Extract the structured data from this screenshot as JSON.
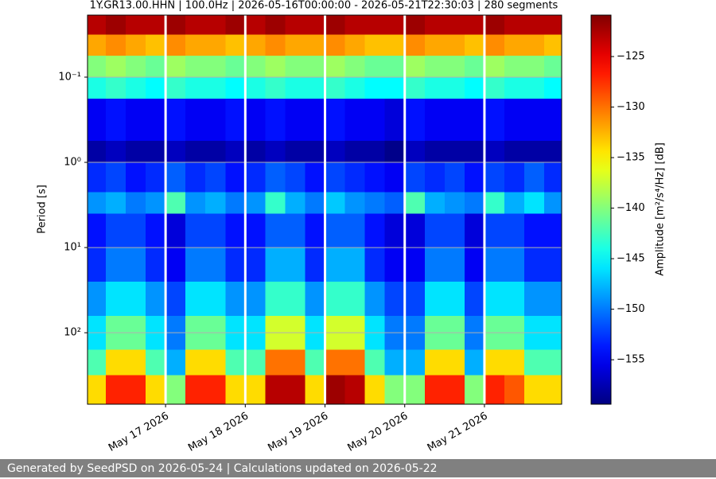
{
  "chart_data": {
    "type": "heatmap",
    "title": "1Y.GR13.00.HHN | 100.0Hz | 2026-05-16T00:00:00 - 2026-05-21T22:30:03 | 280 segments",
    "y_label": "Period [s]",
    "colorbar_label": "Amplitude [m²/s⁴/Hz] [dB]",
    "colormap": "jet",
    "x_bins": [
      "2026-05-16T00:00",
      "2026-05-16T06:00",
      "2026-05-16T12:00",
      "2026-05-16T18:00",
      "2026-05-17T00:00",
      "2026-05-17T06:00",
      "2026-05-17T12:00",
      "2026-05-17T18:00",
      "2026-05-18T00:00",
      "2026-05-18T06:00",
      "2026-05-18T12:00",
      "2026-05-18T18:00",
      "2026-05-19T00:00",
      "2026-05-19T06:00",
      "2026-05-19T12:00",
      "2026-05-19T18:00",
      "2026-05-20T00:00",
      "2026-05-20T06:00",
      "2026-05-20T12:00",
      "2026-05-20T18:00",
      "2026-05-21T00:00",
      "2026-05-21T06:00",
      "2026-05-21T12:00",
      "2026-05-21T18:00",
      "2026-05-22T00:00"
    ],
    "y_bins": [
      0.0187,
      0.0316,
      0.0562,
      0.1,
      0.178,
      0.562,
      1,
      2.24,
      3.98,
      10,
      25.1,
      63.1,
      158,
      316,
      690
    ],
    "values": [
      [
        -123,
        -122,
        -123,
        -123,
        -122,
        -123,
        -123,
        -122,
        -123,
        -122,
        -123,
        -123,
        -122,
        -123,
        -123,
        -123,
        -122,
        -123,
        -123,
        -123,
        -122,
        -123,
        -123,
        -123
      ],
      [
        -132,
        -131,
        -132,
        -133,
        -131,
        -132,
        -132,
        -133,
        -132,
        -131,
        -132,
        -132,
        -131,
        -132,
        -133,
        -133,
        -131,
        -132,
        -132,
        -133,
        -131,
        -132,
        -132,
        -133
      ],
      [
        -140,
        -139,
        -140,
        -141,
        -139,
        -140,
        -140,
        -141,
        -140,
        -139,
        -140,
        -140,
        -139,
        -140,
        -141,
        -141,
        -139,
        -140,
        -140,
        -141,
        -139,
        -140,
        -140,
        -141
      ],
      [
        -144,
        -143,
        -144,
        -145,
        -143,
        -144,
        -144,
        -145,
        -144,
        -143,
        -144,
        -144,
        -143,
        -144,
        -145,
        -145,
        -143,
        -144,
        -144,
        -145,
        -143,
        -144,
        -144,
        -145
      ],
      [
        -155,
        -154,
        -155,
        -155,
        -154,
        -155,
        -155,
        -154,
        -155,
        -154,
        -155,
        -155,
        -154,
        -155,
        -155,
        -156,
        -154,
        -155,
        -155,
        -155,
        -154,
        -155,
        -155,
        -155
      ],
      [
        -158,
        -157,
        -158,
        -158,
        -157,
        -158,
        -158,
        -157,
        -158,
        -157,
        -158,
        -158,
        -157,
        -158,
        -158,
        -159,
        -157,
        -158,
        -158,
        -158,
        -157,
        -158,
        -158,
        -158
      ],
      [
        -153,
        -152,
        -154,
        -153,
        -151,
        -153,
        -152,
        -154,
        -153,
        -151,
        -152,
        -154,
        -152,
        -153,
        -154,
        -155,
        -152,
        -153,
        -152,
        -154,
        -152,
        -153,
        -151,
        -153
      ],
      [
        -149,
        -148,
        -150,
        -149,
        -142,
        -149,
        -148,
        -150,
        -149,
        -143,
        -148,
        -150,
        -147,
        -149,
        -150,
        -151,
        -142,
        -148,
        -149,
        -150,
        -143,
        -148,
        -146,
        -149
      ],
      [
        -154,
        -152,
        -152,
        -154,
        -156,
        -152,
        -152,
        -154,
        -154,
        -151,
        -151,
        -154,
        -151,
        -151,
        -154,
        -156,
        -156,
        -152,
        -152,
        -156,
        -152,
        -152,
        -154,
        -154
      ],
      [
        -153,
        -150,
        -150,
        -153,
        -155,
        -150,
        -150,
        -153,
        -153,
        -148,
        -148,
        -153,
        -148,
        -148,
        -153,
        -155,
        -155,
        -150,
        -150,
        -155,
        -150,
        -150,
        -153,
        -153
      ],
      [
        -149,
        -146,
        -146,
        -149,
        -152,
        -146,
        -146,
        -149,
        -149,
        -143,
        -143,
        -149,
        -143,
        -143,
        -149,
        -152,
        -152,
        -146,
        -146,
        -152,
        -146,
        -146,
        -149,
        -149
      ],
      [
        -146,
        -141,
        -141,
        -146,
        -150,
        -141,
        -141,
        -146,
        -146,
        -137,
        -137,
        -146,
        -137,
        -137,
        -146,
        -150,
        -150,
        -141,
        -141,
        -150,
        -141,
        -141,
        -146,
        -146
      ],
      [
        -142,
        -134,
        -134,
        -142,
        -148,
        -134,
        -134,
        -142,
        -142,
        -130,
        -130,
        -142,
        -130,
        -130,
        -142,
        -148,
        -148,
        -134,
        -134,
        -148,
        -134,
        -134,
        -142,
        -142
      ],
      [
        -134,
        -127,
        -127,
        -134,
        -140,
        -127,
        -127,
        -134,
        -134,
        -123,
        -123,
        -134,
        -122,
        -123,
        -134,
        -140,
        -140,
        -127,
        -127,
        -140,
        -127,
        -129,
        -134,
        -134
      ]
    ],
    "xlim": [
      "2026-05-16T00:30",
      "2026-05-21T23:15"
    ],
    "xticks": [
      {
        "value": "2026-05-17",
        "label": "May 17 2026"
      },
      {
        "value": "2026-05-18",
        "label": "May 18 2026"
      },
      {
        "value": "2026-05-19",
        "label": "May 19 2026"
      },
      {
        "value": "2026-05-20",
        "label": "May 20 2026"
      },
      {
        "value": "2026-05-21",
        "label": "May 21 2026"
      }
    ],
    "ylim": [
      0.0187,
      690
    ],
    "y_scale": "log",
    "y_inverted": true,
    "yticks": [
      {
        "value": 0.1,
        "label": "10⁻¹"
      },
      {
        "value": 1,
        "label": "10⁰"
      },
      {
        "value": 10,
        "label": "10¹"
      },
      {
        "value": 100,
        "label": "10²"
      }
    ],
    "grid": true,
    "clim": [
      -159.4,
      -120.9
    ],
    "cticks": [
      {
        "value": -125,
        "label": "−125"
      },
      {
        "value": -130,
        "label": "−130"
      },
      {
        "value": -135,
        "label": "−135"
      },
      {
        "value": -140,
        "label": "−140"
      },
      {
        "value": -145,
        "label": "−145"
      },
      {
        "value": -150,
        "label": "−150"
      },
      {
        "value": -155,
        "label": "−155"
      }
    ]
  },
  "footer": {
    "text": "Generated by SeedPSD on 2026-05-24 | Calculations updated on 2026-05-22"
  }
}
